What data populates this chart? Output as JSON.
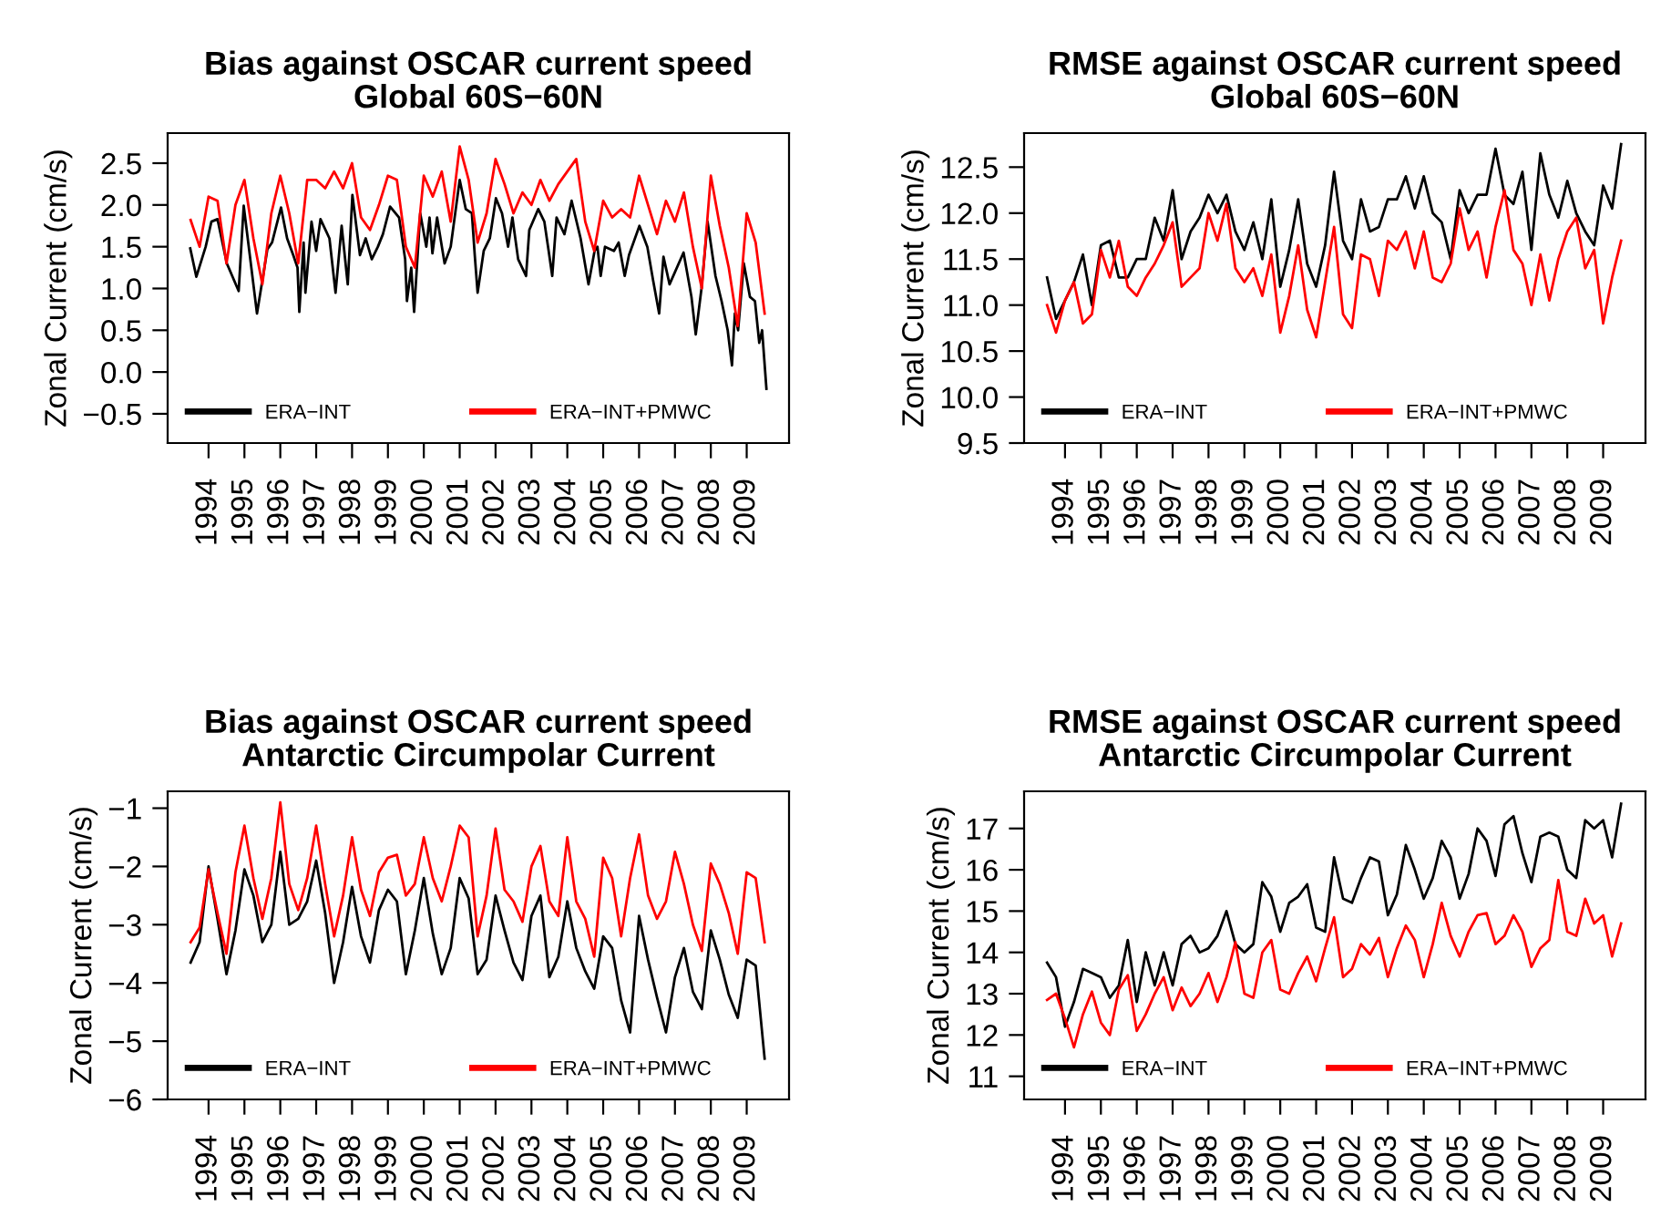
{
  "chart_data": [
    {
      "type": "line",
      "title": "Bias against OSCAR current speed\nGlobal 60S−60N",
      "ylabel": "Zonal Current (cm/s)",
      "x": [
        1993.5,
        1993.75,
        1994,
        1994.25,
        1994.5,
        1994.75,
        1995,
        1995.25,
        1995.5,
        1995.75,
        1996,
        1996.25,
        1996.5,
        1996.75,
        1997,
        1997.25,
        1997.5,
        1997.75,
        1998,
        1998.25,
        1998.5,
        1998.75,
        1999,
        1999.25,
        1999.5,
        1999.75,
        2000,
        2000.25,
        2000.5,
        2000.75,
        2001,
        2001.25,
        2001.5,
        2001.75,
        2002,
        2002.25,
        2002.5,
        2002.75,
        2003,
        2003.25,
        2003.5,
        2003.75,
        2004,
        2004.25,
        2004.5,
        2004.75,
        2005,
        2005.25,
        2005.5,
        2005.75,
        2006,
        2006.25,
        2006.5,
        2006.75,
        2007,
        2007.25,
        2007.5,
        2007.75,
        2008,
        2008.25,
        2008.5,
        2008.75,
        2009,
        2009.25,
        2009.5
      ],
      "series": [
        {
          "name": "ERA−INT",
          "color": "#000000",
          "x": [
            1993.49,
            1993.66,
            1993.92,
            1994.08,
            1994.25,
            1994.51,
            1994.84,
            1994.98,
            1995.35,
            1995.64,
            1995.77,
            1996.02,
            1996.19,
            1996.36,
            1996.48,
            1996.53,
            1996.65,
            1996.7,
            1996.87,
            1997.0,
            1997.12,
            1997.37,
            1997.54,
            1997.71,
            1997.88,
            1998.01,
            1998.22,
            1998.38,
            1998.55,
            1998.72,
            1998.86,
            1999.06,
            1999.31,
            1999.48,
            1999.53,
            1999.65,
            1999.73,
            1999.9,
            2000.07,
            2000.16,
            2000.24,
            2000.37,
            2000.58,
            2000.75,
            2001.0,
            2001.17,
            2001.34,
            2001.42,
            2001.5,
            2001.67,
            2001.84,
            2002.01,
            2002.18,
            2002.35,
            2002.47,
            2002.63,
            2002.85,
            2002.94,
            2003.19,
            2003.36,
            2003.48,
            2003.58,
            2003.7,
            2003.92,
            2004.12,
            2004.37,
            2004.51,
            2004.59,
            2004.76,
            2004.84,
            2004.93,
            2005.05,
            2005.3,
            2005.43,
            2005.6,
            2005.72,
            2006.01,
            2006.23,
            2006.39,
            2006.56,
            2006.68,
            2006.85,
            2007.24,
            2007.46,
            2007.58,
            2007.74,
            2007.91,
            2008.13,
            2008.3,
            2008.47,
            2008.59,
            2008.67,
            2008.76,
            2008.92,
            2009.09,
            2009.23,
            2009.35,
            2009.43,
            2009.55
          ],
          "values": [
            1.48,
            1.14,
            1.5,
            1.8,
            1.83,
            1.3,
            0.97,
            1.99,
            0.7,
            1.47,
            1.55,
            1.97,
            1.6,
            1.4,
            1.25,
            0.72,
            1.55,
            0.95,
            1.8,
            1.45,
            1.83,
            1.6,
            0.95,
            1.75,
            1.05,
            2.12,
            1.4,
            1.6,
            1.35,
            1.5,
            1.65,
            1.98,
            1.85,
            1.35,
            0.85,
            1.25,
            0.72,
            1.9,
            1.5,
            1.85,
            1.42,
            1.85,
            1.3,
            1.5,
            2.3,
            1.95,
            1.9,
            1.4,
            0.95,
            1.45,
            1.6,
            2.08,
            1.9,
            1.5,
            1.85,
            1.35,
            1.15,
            1.7,
            1.95,
            1.8,
            1.45,
            1.15,
            1.85,
            1.65,
            2.05,
            1.6,
            1.25,
            1.05,
            1.45,
            1.5,
            1.15,
            1.5,
            1.45,
            1.55,
            1.15,
            1.4,
            1.75,
            1.5,
            1.1,
            0.7,
            1.38,
            1.05,
            1.43,
            0.9,
            0.45,
            1.0,
            1.8,
            1.15,
            0.85,
            0.5,
            0.08,
            0.7,
            0.5,
            1.3,
            0.9,
            0.85,
            0.35,
            0.5,
            -0.2
          ]
        },
        {
          "name": "ERA−INT+PMWC",
          "color": "#ff0000",
          "values": [
            1.82,
            1.5,
            2.1,
            2.05,
            1.3,
            2.0,
            2.3,
            1.6,
            1.05,
            1.9,
            2.35,
            1.9,
            1.3,
            2.3,
            2.3,
            2.2,
            2.4,
            2.2,
            2.5,
            1.85,
            1.7,
            2.0,
            2.35,
            2.3,
            1.5,
            1.25,
            2.35,
            2.1,
            2.4,
            1.8,
            2.7,
            2.3,
            1.55,
            1.9,
            2.55,
            2.25,
            1.9,
            2.15,
            2.0,
            2.3,
            2.05,
            2.25,
            2.4,
            2.55,
            1.8,
            1.45,
            2.05,
            1.85,
            1.95,
            1.85,
            2.35,
            2.0,
            1.65,
            2.05,
            1.8,
            2.15,
            1.5,
            1.0,
            2.35,
            1.75,
            1.25,
            0.55,
            1.9,
            1.55,
            0.7
          ]
        }
      ],
      "xlim": [
        1992.86,
        2010.18
      ],
      "xticks": [
        1994,
        1995,
        1996,
        1997,
        1998,
        1999,
        2000,
        2001,
        2002,
        2003,
        2004,
        2005,
        2006,
        2007,
        2008,
        2009
      ],
      "ylim": [
        -0.85,
        2.86
      ],
      "yticks": [
        {
          "value": -0.5,
          "label": "−0.5"
        },
        {
          "value": 0,
          "label": "0.0"
        },
        {
          "value": 0.5,
          "label": "0.5"
        },
        {
          "value": 1,
          "label": "1.0"
        },
        {
          "value": 1.5,
          "label": "1.5"
        },
        {
          "value": 2,
          "label": "2.0"
        },
        {
          "value": 2.5,
          "label": "2.5"
        }
      ],
      "legend": "bottom left",
      "grid": false,
      "line_style": "solid",
      "marker": "none"
    },
    {
      "type": "line",
      "title": "RMSE against OSCAR current speed\nGlobal 60S−60N",
      "ylabel": "Zonal Current (cm/s)",
      "x": [
        1993.5,
        1993.75,
        1994,
        1994.25,
        1994.5,
        1994.75,
        1995,
        1995.25,
        1995.5,
        1995.75,
        1996,
        1996.25,
        1996.5,
        1996.75,
        1997,
        1997.25,
        1997.5,
        1997.75,
        1998,
        1998.25,
        1998.5,
        1998.75,
        1999,
        1999.25,
        1999.5,
        1999.75,
        2000,
        2000.25,
        2000.5,
        2000.75,
        2001,
        2001.25,
        2001.5,
        2001.75,
        2002,
        2002.25,
        2002.5,
        2002.75,
        2003,
        2003.25,
        2003.5,
        2003.75,
        2004,
        2004.25,
        2004.5,
        2004.75,
        2005,
        2005.25,
        2005.5,
        2005.75,
        2006,
        2006.25,
        2006.5,
        2006.75,
        2007,
        2007.25,
        2007.5,
        2007.75,
        2008,
        2008.25,
        2008.5,
        2008.75,
        2009,
        2009.25,
        2009.5
      ],
      "series": [
        {
          "name": "ERA−INT",
          "color": "#000000",
          "values": [
            11.3,
            10.85,
            11.05,
            11.25,
            11.55,
            11.0,
            11.65,
            11.7,
            11.3,
            11.3,
            11.5,
            11.5,
            11.95,
            11.7,
            12.25,
            11.5,
            11.8,
            11.95,
            12.2,
            12.0,
            12.2,
            11.8,
            11.6,
            11.9,
            11.5,
            12.15,
            11.2,
            11.6,
            12.15,
            11.45,
            11.2,
            11.65,
            12.45,
            11.7,
            11.5,
            12.15,
            11.8,
            11.85,
            12.15,
            12.15,
            12.4,
            12.05,
            12.4,
            12.0,
            11.9,
            11.5,
            12.25,
            12.0,
            12.2,
            12.2,
            12.7,
            12.2,
            12.1,
            12.45,
            11.6,
            12.65,
            12.2,
            11.95,
            12.35,
            12.0,
            11.8,
            11.65,
            12.3,
            12.05,
            12.75
          ]
        },
        {
          "name": "ERA−INT+PMWC",
          "color": "#ff0000",
          "values": [
            11.0,
            10.7,
            11.05,
            11.25,
            10.8,
            10.9,
            11.6,
            11.3,
            11.7,
            11.2,
            11.1,
            11.3,
            11.45,
            11.65,
            11.9,
            11.2,
            11.3,
            11.4,
            12.0,
            11.7,
            12.1,
            11.4,
            11.25,
            11.4,
            11.1,
            11.55,
            10.7,
            11.1,
            11.65,
            10.95,
            10.65,
            11.25,
            11.85,
            10.9,
            10.75,
            11.55,
            11.5,
            11.1,
            11.7,
            11.6,
            11.8,
            11.4,
            11.8,
            11.3,
            11.25,
            11.45,
            12.05,
            11.6,
            11.8,
            11.3,
            11.85,
            12.25,
            11.6,
            11.45,
            11.0,
            11.55,
            11.05,
            11.5,
            11.8,
            11.95,
            11.4,
            11.6,
            10.8,
            11.3,
            11.7
          ]
        }
      ],
      "xlim": [
        1992.86,
        2010.18
      ],
      "xticks": [
        1994,
        1995,
        1996,
        1997,
        1998,
        1999,
        2000,
        2001,
        2002,
        2003,
        2004,
        2005,
        2006,
        2007,
        2008,
        2009
      ],
      "ylim": [
        9.5,
        12.87
      ],
      "yticks": [
        9.5,
        {
          "value": 10,
          "label": "10.0"
        },
        10.5,
        {
          "value": 11,
          "label": "11.0"
        },
        11.5,
        {
          "value": 12,
          "label": "12.0"
        },
        12.5
      ],
      "legend": "bottom left",
      "grid": false,
      "line_style": "solid",
      "marker": "none"
    },
    {
      "type": "line",
      "title": "Bias against OSCAR current speed\nAntarctic Circumpolar Current",
      "ylabel": "Zonal Current (cm/s)",
      "x": [
        1993.5,
        1993.75,
        1994,
        1994.25,
        1994.5,
        1994.75,
        1995,
        1995.25,
        1995.5,
        1995.75,
        1996,
        1996.25,
        1996.5,
        1996.75,
        1997,
        1997.25,
        1997.5,
        1997.75,
        1998,
        1998.25,
        1998.5,
        1998.75,
        1999,
        1999.25,
        1999.5,
        1999.75,
        2000,
        2000.25,
        2000.5,
        2000.75,
        2001,
        2001.25,
        2001.5,
        2001.75,
        2002,
        2002.25,
        2002.5,
        2002.75,
        2003,
        2003.25,
        2003.5,
        2003.75,
        2004,
        2004.25,
        2004.5,
        2004.75,
        2005,
        2005.25,
        2005.5,
        2005.75,
        2006,
        2006.25,
        2006.5,
        2006.75,
        2007,
        2007.25,
        2007.5,
        2007.75,
        2008,
        2008.25,
        2008.5,
        2008.75,
        2009,
        2009.25,
        2009.5
      ],
      "series": [
        {
          "name": "ERA−INT",
          "color": "#000000",
          "values": [
            -3.65,
            -3.3,
            -2.0,
            -2.9,
            -3.85,
            -3.1,
            -2.05,
            -2.5,
            -3.3,
            -3.0,
            -1.75,
            -3.0,
            -2.9,
            -2.6,
            -1.9,
            -2.8,
            -4.0,
            -3.3,
            -2.35,
            -3.2,
            -3.65,
            -2.75,
            -2.4,
            -2.6,
            -3.85,
            -3.1,
            -2.2,
            -3.15,
            -3.85,
            -3.4,
            -2.2,
            -2.55,
            -3.85,
            -3.6,
            -2.5,
            -3.1,
            -3.65,
            -3.95,
            -2.85,
            -2.5,
            -3.9,
            -3.55,
            -2.6,
            -3.4,
            -3.8,
            -4.1,
            -3.2,
            -3.4,
            -4.3,
            -4.85,
            -2.85,
            -3.6,
            -4.25,
            -4.85,
            -3.9,
            -3.4,
            -4.15,
            -4.45,
            -3.1,
            -3.6,
            -4.2,
            -4.6,
            -3.6,
            -3.7,
            -5.3
          ]
        },
        {
          "name": "ERA−INT+PMWC",
          "color": "#ff0000",
          "values": [
            -3.3,
            -3.05,
            -2.05,
            -2.8,
            -3.5,
            -2.1,
            -1.3,
            -2.2,
            -2.9,
            -2.2,
            -0.9,
            -2.3,
            -2.75,
            -2.2,
            -1.3,
            -2.3,
            -3.2,
            -2.5,
            -1.5,
            -2.4,
            -2.85,
            -2.1,
            -1.85,
            -1.8,
            -2.5,
            -2.3,
            -1.5,
            -2.2,
            -2.6,
            -2.0,
            -1.3,
            -1.5,
            -3.2,
            -2.5,
            -1.35,
            -2.4,
            -2.6,
            -2.95,
            -2.0,
            -1.65,
            -2.6,
            -2.85,
            -1.5,
            -2.6,
            -2.9,
            -3.55,
            -1.85,
            -2.2,
            -3.2,
            -2.2,
            -1.45,
            -2.5,
            -2.9,
            -2.6,
            -1.75,
            -2.3,
            -3.0,
            -3.45,
            -1.95,
            -2.3,
            -2.8,
            -3.5,
            -2.1,
            -2.2,
            -3.3
          ]
        }
      ],
      "xlim": [
        1992.86,
        2010.18
      ],
      "xticks": [
        1994,
        1995,
        1996,
        1997,
        1998,
        1999,
        2000,
        2001,
        2002,
        2003,
        2004,
        2005,
        2006,
        2007,
        2008,
        2009
      ],
      "ylim": [
        -6,
        -0.71
      ],
      "yticks": [
        {
          "value": -6,
          "label": "−6"
        },
        {
          "value": -5,
          "label": "−5"
        },
        {
          "value": -4,
          "label": "−4"
        },
        {
          "value": -3,
          "label": "−3"
        },
        {
          "value": -2,
          "label": "−2"
        },
        {
          "value": -1,
          "label": "−1"
        }
      ],
      "legend": "bottom left",
      "grid": false,
      "line_style": "solid",
      "marker": "none"
    },
    {
      "type": "line",
      "title": "RMSE against OSCAR current speed\nAntarctic Circumpolar Current",
      "ylabel": "Zonal Current (cm/s)",
      "x": [
        1993.5,
        1993.75,
        1994,
        1994.25,
        1994.5,
        1994.75,
        1995,
        1995.25,
        1995.5,
        1995.75,
        1996,
        1996.25,
        1996.5,
        1996.75,
        1997,
        1997.25,
        1997.5,
        1997.75,
        1998,
        1998.25,
        1998.5,
        1998.75,
        1999,
        1999.25,
        1999.5,
        1999.75,
        2000,
        2000.25,
        2000.5,
        2000.75,
        2001,
        2001.25,
        2001.5,
        2001.75,
        2002,
        2002.25,
        2002.5,
        2002.75,
        2003,
        2003.25,
        2003.5,
        2003.75,
        2004,
        2004.25,
        2004.5,
        2004.75,
        2005,
        2005.25,
        2005.5,
        2005.75,
        2006,
        2006.25,
        2006.5,
        2006.75,
        2007,
        2007.25,
        2007.5,
        2007.75,
        2008,
        2008.25,
        2008.5,
        2008.75,
        2009,
        2009.25,
        2009.5
      ],
      "series": [
        {
          "name": "ERA−INT",
          "color": "#000000",
          "values": [
            13.75,
            13.4,
            12.2,
            12.8,
            13.6,
            13.5,
            13.4,
            12.9,
            13.2,
            14.3,
            12.8,
            14.0,
            13.2,
            14.0,
            13.2,
            14.2,
            14.4,
            14.0,
            14.1,
            14.4,
            15.0,
            14.2,
            14.0,
            14.2,
            15.7,
            15.35,
            14.5,
            15.2,
            15.35,
            15.65,
            14.6,
            14.5,
            16.3,
            15.3,
            15.2,
            15.8,
            16.3,
            16.2,
            14.9,
            15.4,
            16.6,
            16.0,
            15.3,
            15.8,
            16.7,
            16.3,
            15.3,
            15.9,
            17.0,
            16.7,
            15.85,
            17.1,
            17.3,
            16.4,
            15.7,
            16.8,
            16.9,
            16.8,
            16.0,
            15.8,
            17.2,
            17.0,
            17.2,
            16.3,
            17.6
          ]
        },
        {
          "name": "ERA−INT+PMWC",
          "color": "#ff0000",
          "values": [
            12.85,
            13.0,
            12.4,
            11.7,
            12.5,
            13.05,
            12.3,
            12.0,
            13.1,
            13.45,
            12.1,
            12.5,
            13.0,
            13.4,
            12.6,
            13.15,
            12.7,
            13.0,
            13.5,
            12.8,
            13.4,
            14.25,
            13.0,
            12.9,
            14.0,
            14.3,
            13.1,
            13.0,
            13.5,
            13.9,
            13.3,
            14.1,
            14.85,
            13.4,
            13.6,
            14.2,
            13.95,
            14.35,
            13.4,
            14.1,
            14.65,
            14.3,
            13.4,
            14.2,
            15.2,
            14.4,
            13.9,
            14.5,
            14.9,
            14.95,
            14.2,
            14.4,
            14.9,
            14.5,
            13.65,
            14.1,
            14.3,
            15.75,
            14.5,
            14.4,
            15.3,
            14.7,
            14.9,
            13.9,
            14.7
          ]
        }
      ],
      "xlim": [
        1992.86,
        2010.18
      ],
      "xticks": [
        1994,
        1995,
        1996,
        1997,
        1998,
        1999,
        2000,
        2001,
        2002,
        2003,
        2004,
        2005,
        2006,
        2007,
        2008,
        2009
      ],
      "ylim": [
        10.44,
        17.9
      ],
      "yticks": [
        11,
        12,
        13,
        14,
        15,
        16,
        17
      ],
      "legend": "bottom left",
      "grid": false,
      "line_style": "solid",
      "marker": "none"
    }
  ]
}
